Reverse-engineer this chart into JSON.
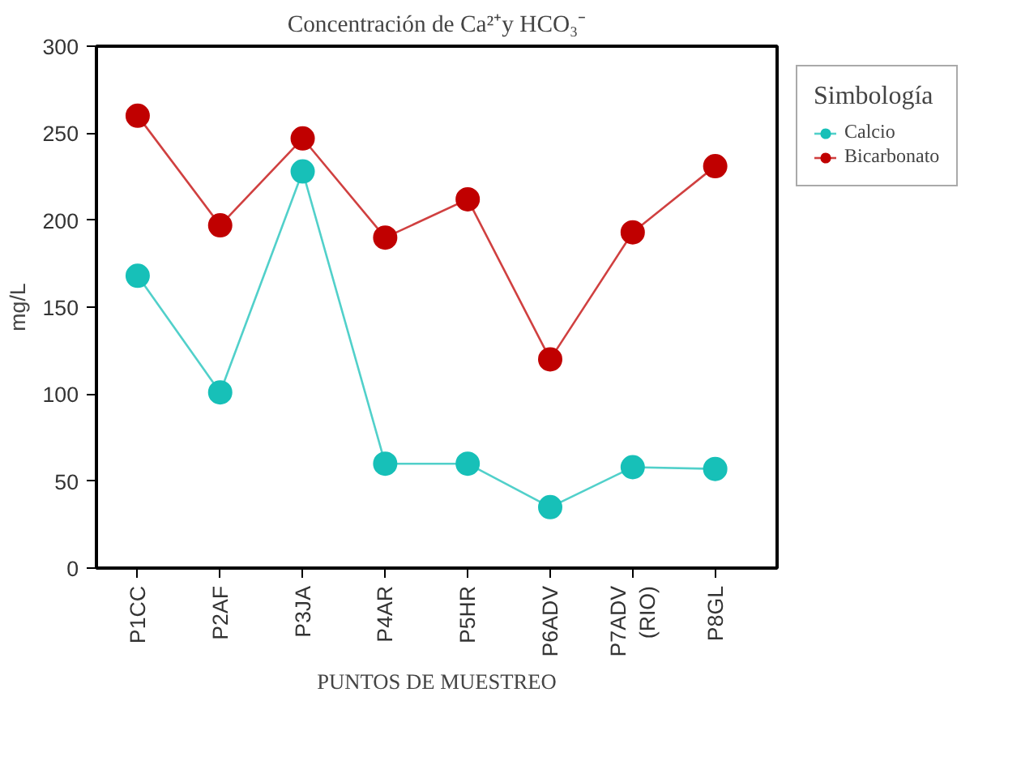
{
  "chart_data": {
    "type": "line",
    "title": "Concentración de Ca²⁺y HCO₃⁻",
    "xlabel": "PUNTOS DE MUESTREO",
    "ylabel": "mg/L",
    "legend_title": "Simbología",
    "categories": [
      "P1CC",
      "P2AF",
      "P3JA",
      "P4AR",
      "P5HR",
      "P6ADV",
      "P7ADV\n(RIO)",
      "P8GL"
    ],
    "series": [
      {
        "name": "Calcio",
        "color": "#17c0b8",
        "values": [
          168,
          101,
          228,
          60,
          60,
          35,
          58,
          57
        ]
      },
      {
        "name": "Bicarbonato",
        "color": "#c00000",
        "values": [
          260,
          197,
          247,
          190,
          212,
          120,
          193,
          231
        ]
      }
    ],
    "ylim": [
      0,
      300
    ],
    "yticks": [
      0,
      50,
      100,
      150,
      200,
      250,
      300
    ],
    "grid": false,
    "legend": "right",
    "marker": "circle",
    "line_style": "solid"
  }
}
